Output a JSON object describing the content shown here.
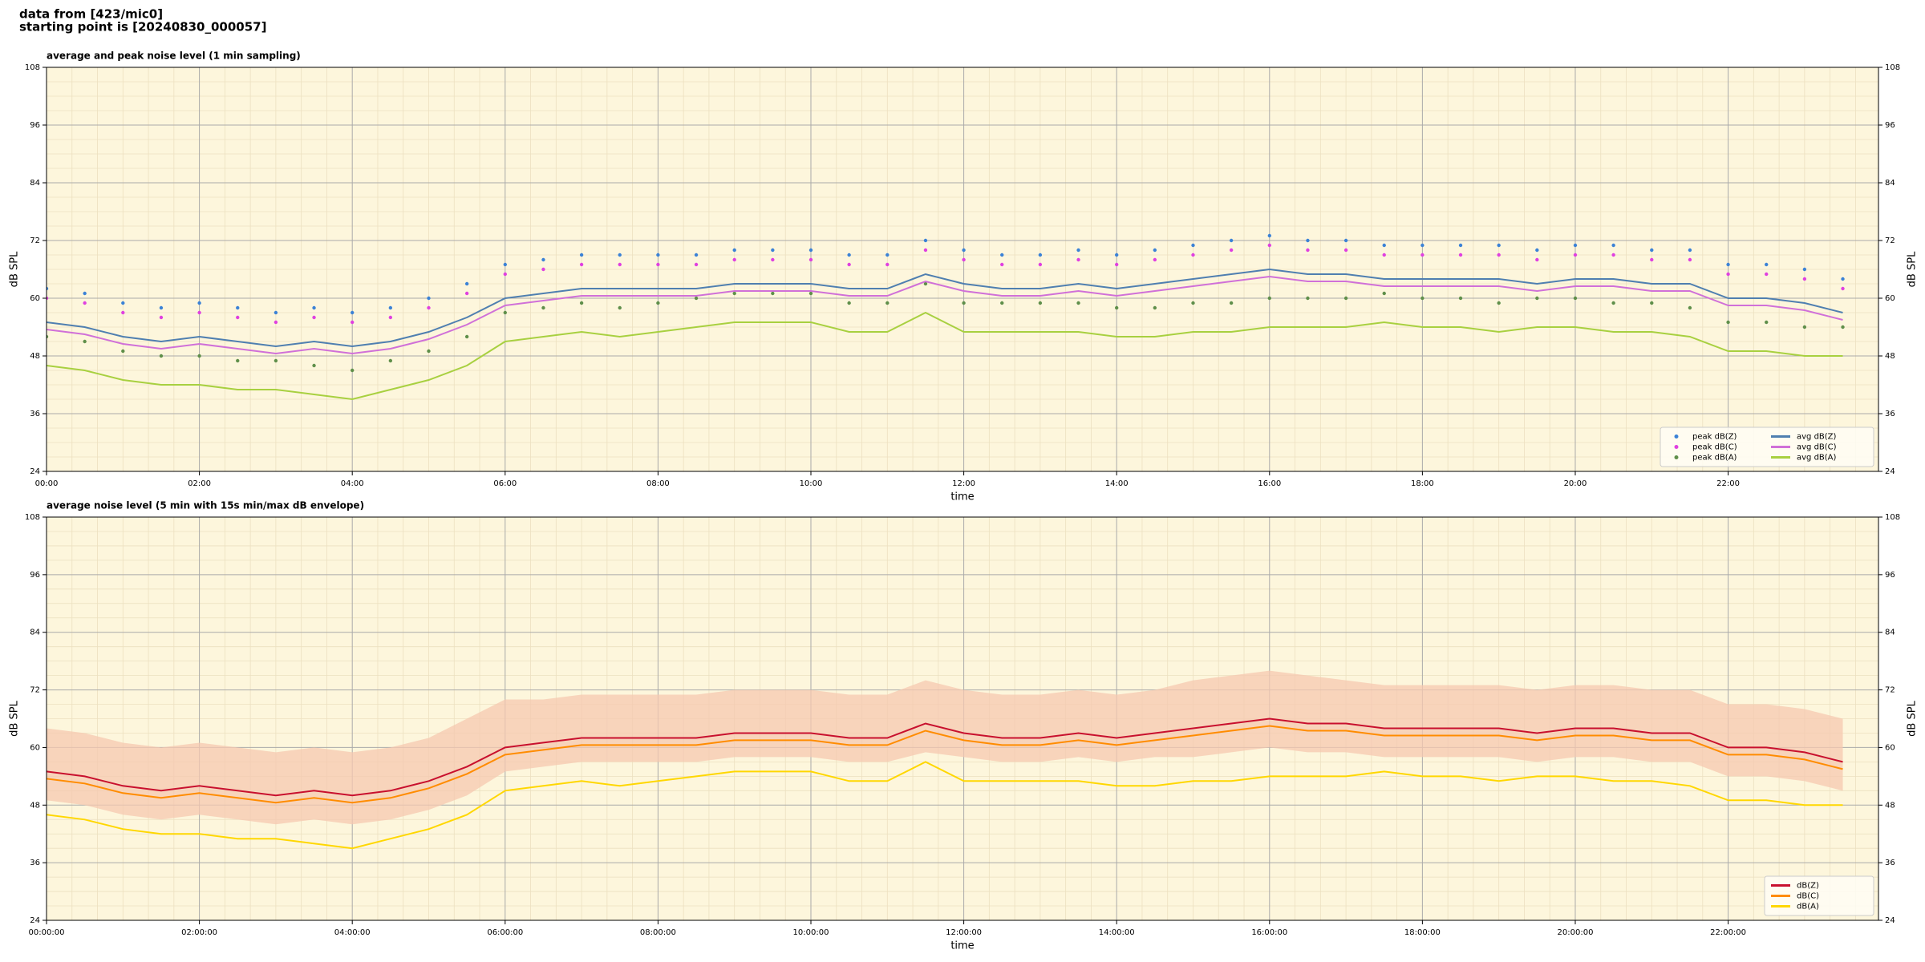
{
  "header": {
    "source": "data from [423/mic0]",
    "start": "starting point is [20240830_000057]"
  },
  "chart_data": [
    {
      "type": "line",
      "title": "average and peak noise level (1 min sampling)",
      "xlabel": "time",
      "ylabel": "dB SPL",
      "background": "#fdf6dc",
      "grid": true,
      "legend": "lower right",
      "xlim": [
        "00:00",
        "23:58"
      ],
      "ylim": [
        24,
        108
      ],
      "yticks": [
        24,
        36,
        48,
        60,
        72,
        84,
        96,
        108
      ],
      "xticks": [
        "00:00",
        "02:00",
        "04:00",
        "06:00",
        "08:00",
        "10:00",
        "12:00",
        "14:00",
        "16:00",
        "18:00",
        "20:00",
        "22:00"
      ],
      "x": [
        "00:00",
        "00:30",
        "01:00",
        "01:30",
        "02:00",
        "02:30",
        "03:00",
        "03:30",
        "04:00",
        "04:30",
        "05:00",
        "05:30",
        "06:00",
        "06:30",
        "07:00",
        "07:30",
        "08:00",
        "08:30",
        "09:00",
        "09:30",
        "10:00",
        "10:30",
        "11:00",
        "11:30",
        "12:00",
        "12:30",
        "13:00",
        "13:30",
        "14:00",
        "14:30",
        "15:00",
        "15:30",
        "16:00",
        "16:30",
        "17:00",
        "17:30",
        "18:00",
        "18:30",
        "19:00",
        "19:30",
        "20:00",
        "20:30",
        "21:00",
        "21:30",
        "22:00",
        "22:30",
        "23:00",
        "23:30"
      ],
      "series": [
        {
          "name": "peak dB(Z)",
          "style": "points",
          "color": "#3b82d6",
          "values": [
            62,
            61,
            59,
            58,
            59,
            58,
            57,
            58,
            57,
            58,
            60,
            63,
            67,
            68,
            69,
            69,
            69,
            69,
            70,
            70,
            70,
            69,
            69,
            72,
            70,
            69,
            69,
            70,
            69,
            70,
            71,
            72,
            73,
            72,
            72,
            71,
            71,
            71,
            71,
            70,
            71,
            71,
            70,
            70,
            67,
            67,
            66,
            64
          ]
        },
        {
          "name": "peak dB(C)",
          "style": "points",
          "color": "#e040e0",
          "values": [
            60,
            59,
            57,
            56,
            57,
            56,
            55,
            56,
            55,
            56,
            58,
            61,
            65,
            66,
            67,
            67,
            67,
            67,
            68,
            68,
            68,
            67,
            67,
            70,
            68,
            67,
            67,
            68,
            67,
            68,
            69,
            70,
            71,
            70,
            70,
            69,
            69,
            69,
            69,
            68,
            69,
            69,
            68,
            68,
            65,
            65,
            64,
            62
          ]
        },
        {
          "name": "peak dB(A)",
          "style": "points",
          "color": "#5f8f4a",
          "values": [
            52,
            51,
            49,
            48,
            48,
            47,
            47,
            46,
            45,
            47,
            49,
            52,
            57,
            58,
            59,
            58,
            59,
            60,
            61,
            61,
            61,
            59,
            59,
            63,
            59,
            59,
            59,
            59,
            58,
            58,
            59,
            59,
            60,
            60,
            60,
            61,
            60,
            60,
            59,
            60,
            60,
            59,
            59,
            58,
            55,
            55,
            54,
            54
          ]
        },
        {
          "name": "avg dB(Z)",
          "style": "line",
          "color": "#4f7fb0",
          "values": [
            55,
            54,
            52,
            51,
            52,
            51,
            50,
            51,
            50,
            51,
            53,
            56,
            60,
            61,
            62,
            62,
            62,
            62,
            63,
            63,
            63,
            62,
            62,
            65,
            63,
            62,
            62,
            63,
            62,
            63,
            64,
            65,
            66,
            65,
            65,
            64,
            64,
            64,
            64,
            63,
            64,
            64,
            63,
            63,
            60,
            60,
            59,
            57
          ]
        },
        {
          "name": "avg dB(C)",
          "style": "line",
          "color": "#d070d8",
          "values": [
            53.5,
            52.5,
            50.5,
            49.5,
            50.5,
            49.5,
            48.5,
            49.5,
            48.5,
            49.5,
            51.5,
            54.5,
            58.5,
            59.5,
            60.5,
            60.5,
            60.5,
            60.5,
            61.5,
            61.5,
            61.5,
            60.5,
            60.5,
            63.5,
            61.5,
            60.5,
            60.5,
            61.5,
            60.5,
            61.5,
            62.5,
            63.5,
            64.5,
            63.5,
            63.5,
            62.5,
            62.5,
            62.5,
            62.5,
            61.5,
            62.5,
            62.5,
            61.5,
            61.5,
            58.5,
            58.5,
            57.5,
            55.5
          ]
        },
        {
          "name": "avg dB(A)",
          "style": "line",
          "color": "#a8d040",
          "values": [
            46,
            45,
            43,
            42,
            42,
            41,
            41,
            40,
            39,
            41,
            43,
            46,
            51,
            52,
            53,
            52,
            53,
            54,
            55,
            55,
            55,
            53,
            53,
            57,
            53,
            53,
            53,
            53,
            52,
            52,
            53,
            53,
            54,
            54,
            54,
            55,
            54,
            54,
            53,
            54,
            54,
            53,
            53,
            52,
            49,
            49,
            48,
            48
          ]
        }
      ]
    },
    {
      "type": "line",
      "title": "average noise level (5 min with 15s min/max dB envelope)",
      "xlabel": "time",
      "ylabel": "dB SPL",
      "background": "#fdf6dc",
      "grid": true,
      "legend": "lower right",
      "xlim": [
        "00:00:00",
        "23:58:00"
      ],
      "ylim": [
        24,
        108
      ],
      "yticks": [
        24,
        36,
        48,
        60,
        72,
        84,
        96,
        108
      ],
      "xticks": [
        "00:00:00",
        "02:00:00",
        "04:00:00",
        "06:00:00",
        "08:00:00",
        "10:00:00",
        "12:00:00",
        "14:00:00",
        "16:00:00",
        "18:00:00",
        "20:00:00",
        "22:00:00"
      ],
      "x": [
        "00:00:00",
        "00:30:00",
        "01:00:00",
        "01:30:00",
        "02:00:00",
        "02:30:00",
        "03:00:00",
        "03:30:00",
        "04:00:00",
        "04:30:00",
        "05:00:00",
        "05:30:00",
        "06:00:00",
        "06:30:00",
        "07:00:00",
        "07:30:00",
        "08:00:00",
        "08:30:00",
        "09:00:00",
        "09:30:00",
        "10:00:00",
        "10:30:00",
        "11:00:00",
        "11:30:00",
        "12:00:00",
        "12:30:00",
        "13:00:00",
        "13:30:00",
        "14:00:00",
        "14:30:00",
        "15:00:00",
        "15:30:00",
        "16:00:00",
        "16:30:00",
        "17:00:00",
        "17:30:00",
        "18:00:00",
        "18:30:00",
        "19:00:00",
        "19:30:00",
        "20:00:00",
        "20:30:00",
        "21:00:00",
        "21:30:00",
        "22:00:00",
        "22:30:00",
        "23:00:00",
        "23:30:00"
      ],
      "envelope": {
        "color": "#f5c8b0",
        "low": [
          49,
          48,
          46,
          45,
          46,
          45,
          44,
          45,
          44,
          45,
          47,
          50,
          55,
          56,
          57,
          57,
          57,
          57,
          58,
          58,
          58,
          57,
          57,
          59,
          58,
          57,
          57,
          58,
          57,
          58,
          58,
          59,
          60,
          59,
          59,
          58,
          58,
          58,
          58,
          57,
          58,
          58,
          57,
          57,
          54,
          54,
          53,
          51
        ],
        "high": [
          64,
          63,
          61,
          60,
          61,
          60,
          59,
          60,
          59,
          60,
          62,
          66,
          70,
          70,
          71,
          71,
          71,
          71,
          72,
          72,
          72,
          71,
          71,
          74,
          72,
          71,
          71,
          72,
          71,
          72,
          74,
          75,
          76,
          75,
          74,
          73,
          73,
          73,
          73,
          72,
          73,
          73,
          72,
          72,
          69,
          69,
          68,
          66
        ]
      },
      "series": [
        {
          "name": "dB(Z)",
          "style": "line",
          "color": "#c8102e",
          "values": [
            55,
            54,
            52,
            51,
            52,
            51,
            50,
            51,
            50,
            51,
            53,
            56,
            60,
            61,
            62,
            62,
            62,
            62,
            63,
            63,
            63,
            62,
            62,
            65,
            63,
            62,
            62,
            63,
            62,
            63,
            64,
            65,
            66,
            65,
            65,
            64,
            64,
            64,
            64,
            63,
            64,
            64,
            63,
            63,
            60,
            60,
            59,
            57
          ]
        },
        {
          "name": "dB(C)",
          "style": "line",
          "color": "#ff8c00",
          "values": [
            53.5,
            52.5,
            50.5,
            49.5,
            50.5,
            49.5,
            48.5,
            49.5,
            48.5,
            49.5,
            51.5,
            54.5,
            58.5,
            59.5,
            60.5,
            60.5,
            60.5,
            60.5,
            61.5,
            61.5,
            61.5,
            60.5,
            60.5,
            63.5,
            61.5,
            60.5,
            60.5,
            61.5,
            60.5,
            61.5,
            62.5,
            63.5,
            64.5,
            63.5,
            63.5,
            62.5,
            62.5,
            62.5,
            62.5,
            61.5,
            62.5,
            62.5,
            61.5,
            61.5,
            58.5,
            58.5,
            57.5,
            55.5
          ]
        },
        {
          "name": "dB(A)",
          "style": "line",
          "color": "#ffd700",
          "values": [
            46,
            45,
            43,
            42,
            42,
            41,
            41,
            40,
            39,
            41,
            43,
            46,
            51,
            52,
            53,
            52,
            53,
            54,
            55,
            55,
            55,
            53,
            53,
            57,
            53,
            53,
            53,
            53,
            52,
            52,
            53,
            53,
            54,
            54,
            54,
            55,
            54,
            54,
            53,
            54,
            54,
            53,
            53,
            52,
            49,
            49,
            48,
            48
          ]
        }
      ]
    }
  ]
}
